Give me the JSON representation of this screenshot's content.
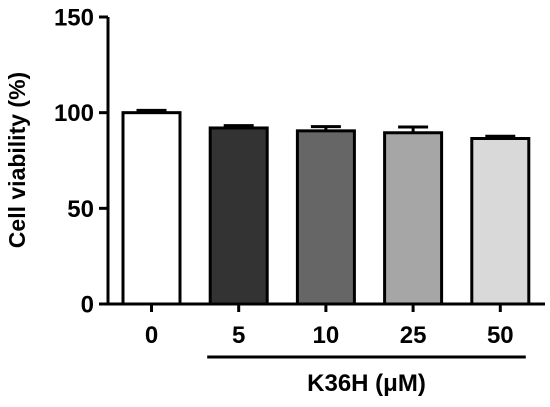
{
  "chart_data": {
    "type": "bar",
    "categories": [
      "0",
      "5",
      "10",
      "25",
      "50"
    ],
    "values": [
      100,
      92,
      90.5,
      89.5,
      86.5
    ],
    "errors": [
      1.2,
      1.2,
      2.2,
      3.0,
      1.2
    ],
    "bar_colors": [
      "#ffffff",
      "#333333",
      "#666666",
      "#a6a6a6",
      "#d9d9d9"
    ],
    "ylabel": "Cell viability (%)",
    "xlabel": "",
    "ylim": [
      0,
      150
    ],
    "yticks": [
      "0",
      "50",
      "100",
      "150"
    ],
    "group_label": "K36H (μM)",
    "group_span": [
      "5",
      "50"
    ],
    "grid": false
  }
}
